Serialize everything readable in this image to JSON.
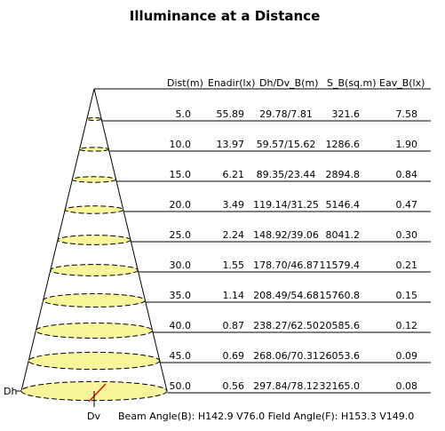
{
  "title": "Illuminance at a Distance",
  "table": {
    "columns": [
      "Dist(m)",
      "Enadir(lx)",
      "Dh/Dv_B(m)",
      "S_B(sq.m)",
      "Eav_B(lx)"
    ],
    "rows": [
      [
        "5.0",
        "55.89",
        "29.78/7.81",
        "321.6",
        "7.58"
      ],
      [
        "10.0",
        "13.97",
        "59.57/15.62",
        "1286.6",
        "1.90"
      ],
      [
        "15.0",
        "6.21",
        "89.35/23.44",
        "2894.8",
        "0.84"
      ],
      [
        "20.0",
        "3.49",
        "119.14/31.25",
        "5146.4",
        "0.47"
      ],
      [
        "25.0",
        "2.24",
        "148.92/39.06",
        "8041.2",
        "0.30"
      ],
      [
        "30.0",
        "1.55",
        "178.70/46.87",
        "11579.4",
        "0.21"
      ],
      [
        "35.0",
        "1.14",
        "208.49/54.68",
        "15760.8",
        "0.15"
      ],
      [
        "40.0",
        "0.87",
        "238.27/62.50",
        "20585.6",
        "0.12"
      ],
      [
        "45.0",
        "0.69",
        "268.06/70.31",
        "26053.6",
        "0.09"
      ],
      [
        "50.0",
        "0.56",
        "297.84/78.12",
        "32165.0",
        "0.08"
      ]
    ]
  },
  "labels": {
    "dh": "Dh",
    "dv": "Dv",
    "angles": "Beam Angle(B): H142.9 V76.0  Field Angle(F): H153.3 V149.0"
  }
}
